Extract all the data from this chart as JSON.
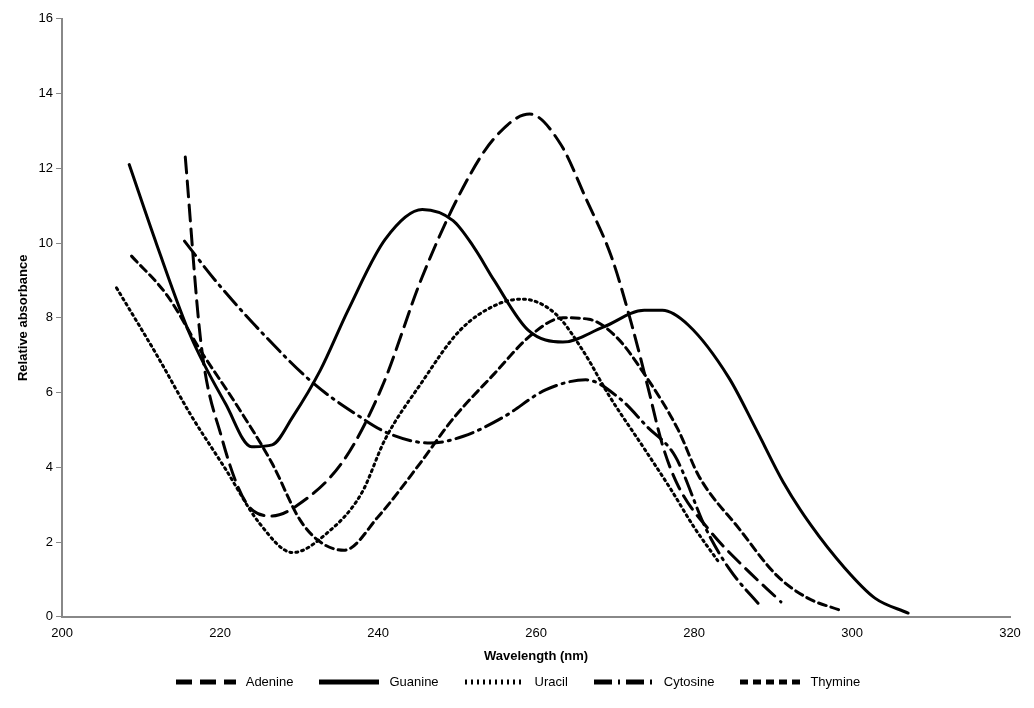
{
  "chart_data": {
    "type": "line",
    "xlabel": "Wavelength (nm)",
    "ylabel": "Relative absorbance",
    "xlim": [
      200,
      320
    ],
    "xticks": [
      200,
      220,
      240,
      260,
      280,
      300,
      320
    ],
    "ylim": [
      0,
      16
    ],
    "yticks": [
      0,
      2,
      4,
      6,
      8,
      10,
      12,
      14,
      16
    ],
    "grid": false,
    "legend": "bottom",
    "marker": "none",
    "series": [
      {
        "name": "Adenine",
        "color": "#000000",
        "line_style": "dashed",
        "x": [
          215.6,
          217.6,
          220.2,
          223.3,
          226.6,
          229.7,
          235.7,
          240.5,
          245.6,
          250.8,
          254.7,
          259.2,
          263.1,
          266.3,
          269.6,
          272.2,
          274.1,
          276,
          278,
          282,
          286,
          291
        ],
        "values": [
          12.3,
          7.3,
          4.8,
          3.05,
          2.7,
          2.97,
          4.2,
          6.15,
          9.1,
          11.5,
          12.8,
          13.45,
          12.65,
          11.2,
          9.6,
          7.75,
          6.2,
          4.6,
          3.5,
          2.3,
          1.4,
          0.4
        ]
      },
      {
        "name": "Guanine",
        "color": "#000000",
        "line_style": "solid",
        "x": [
          208.5,
          212,
          216.3,
          220.7,
          224,
          226.6,
          229.2,
          232.7,
          236.2,
          240.9,
          245.6,
          249.5,
          252.1,
          254.7,
          259,
          263.4,
          268.5,
          273.7,
          276,
          279.3,
          284.4,
          287.9,
          291.3,
          294.8,
          299.1,
          302.9,
          307.1
        ],
        "values": [
          12.1,
          9.95,
          7.5,
          5.7,
          4.55,
          4.6,
          5.35,
          6.6,
          8.2,
          10.1,
          10.9,
          10.6,
          9.9,
          9,
          7.67,
          7.35,
          7.75,
          8.2,
          8.2,
          7.8,
          6.4,
          5,
          3.6,
          2.45,
          1.3,
          0.5,
          0.1
        ]
      },
      {
        "name": "Uracil",
        "color": "#000000",
        "line_style": "dotted",
        "x": [
          206.9,
          212,
          216.3,
          220.7,
          225,
          229.2,
          233.6,
          237.9,
          240.9,
          245.3,
          250.4,
          255.1,
          258.2,
          262.5,
          266,
          269.3,
          273.7,
          277.1,
          280,
          283
        ],
        "values": [
          8.8,
          7,
          5.4,
          3.95,
          2.5,
          1.72,
          2.25,
          3.3,
          4.75,
          6.2,
          7.67,
          8.36,
          8.5,
          8.1,
          7.1,
          5.9,
          4.5,
          3.4,
          2.4,
          1.5
        ]
      },
      {
        "name": "Cytosine",
        "color": "#000000",
        "line_style": "dashed",
        "x": [
          215.5,
          219.4,
          225,
          231.8,
          237,
          241.4,
          246.6,
          250.8,
          256,
          261.2,
          266.3,
          270.6,
          274,
          277.6,
          281.5,
          284.4,
          288.6
        ],
        "values": [
          10.05,
          9,
          7.67,
          6.25,
          5.45,
          4.9,
          4.65,
          4.83,
          5.36,
          6.07,
          6.34,
          5.84,
          5.1,
          4.3,
          2.36,
          1.3,
          0.24
        ]
      },
      {
        "name": "Thymine",
        "color": "#000000",
        "line_style": "dashed",
        "x": [
          208.8,
          213.3,
          217.6,
          222,
          226.6,
          230.1,
          232.7,
          235.7,
          240.1,
          245.3,
          249.5,
          254.7,
          259.5,
          263.4,
          266.7,
          270.2,
          273.7,
          278,
          280.6,
          285.7,
          290.5,
          294.4,
          298.3
        ],
        "values": [
          9.65,
          8.6,
          7.1,
          5.7,
          4.1,
          2.6,
          2,
          1.78,
          2.7,
          4.1,
          5.3,
          6.5,
          7.56,
          8,
          7.96,
          7.48,
          6.5,
          5,
          3.77,
          2.36,
          1.1,
          0.5,
          0.19
        ]
      }
    ]
  }
}
